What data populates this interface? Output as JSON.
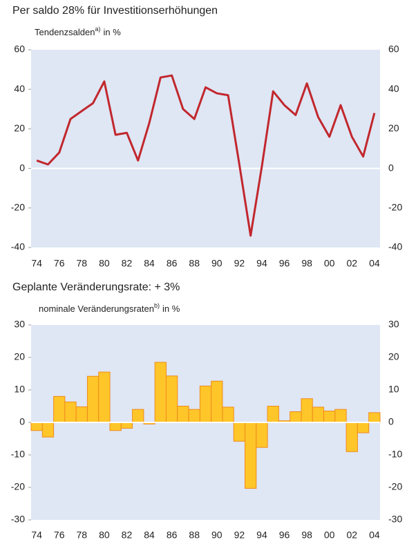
{
  "chart_data": [
    {
      "type": "line",
      "title": "Per saldo 28% für Investitionserhöhungen",
      "subtitle": [
        "Tendenzsalden",
        "a)",
        "in %"
      ],
      "categories": [
        "74",
        null,
        "76",
        null,
        "78",
        null,
        "80",
        null,
        "82",
        null,
        "84",
        null,
        "86",
        null,
        "88",
        null,
        "90",
        null,
        "92",
        null,
        "94",
        null,
        "96",
        null,
        "98",
        null,
        "00",
        null,
        "02",
        null,
        "04"
      ],
      "values": [
        4,
        2,
        8,
        25,
        29,
        33,
        44,
        17,
        18,
        4,
        23,
        46,
        47,
        30,
        25,
        41,
        38,
        37,
        2,
        -34,
        1,
        39,
        32,
        27,
        43,
        26,
        16,
        32,
        16,
        6,
        28
      ],
      "color": "#c1272d",
      "ylim": [
        -40,
        60
      ],
      "yticks": [
        -40,
        -20,
        0,
        20,
        40,
        60
      ]
    },
    {
      "type": "bar",
      "title": "Geplante Veränderungsrate: + 3%",
      "subtitle": [
        "nominale Veränderungsraten",
        "b)",
        "in %"
      ],
      "categories": [
        "74",
        null,
        "76",
        null,
        "78",
        null,
        "80",
        null,
        "82",
        null,
        "84",
        null,
        "86",
        null,
        "88",
        null,
        "90",
        null,
        "92",
        null,
        "94",
        null,
        "96",
        null,
        "98",
        null,
        "00",
        null,
        "02",
        null,
        "04"
      ],
      "values": [
        -2.5,
        -4.5,
        8,
        6.3,
        4.8,
        14.2,
        15.5,
        -2.5,
        -1.8,
        4,
        -0.5,
        18.5,
        14.3,
        5,
        4,
        11.2,
        12.7,
        4.7,
        -5.8,
        -20.3,
        -7.7,
        5,
        0.5,
        3.3,
        7.3,
        4.7,
        3.5,
        4,
        -9,
        -3.2,
        3
      ],
      "color": "#ffc629",
      "ylim": [
        -30,
        30
      ],
      "yticks": [
        -30,
        -20,
        -10,
        0,
        10,
        20,
        30
      ]
    }
  ]
}
